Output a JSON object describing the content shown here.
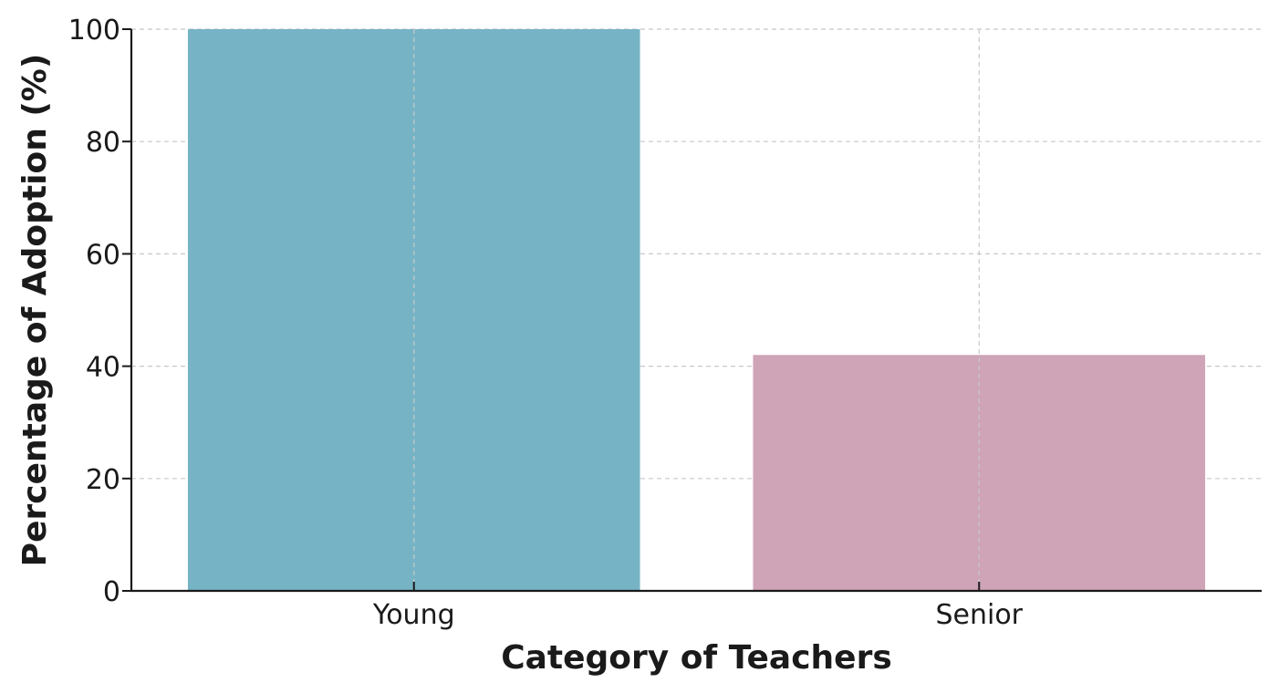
{
  "chart_data": {
    "type": "bar",
    "title": "",
    "xlabel": "Category of Teachers",
    "ylabel": "Percentage of Adoption (%)",
    "categories": [
      "Young",
      "Senior"
    ],
    "values": [
      100,
      42
    ],
    "colors": [
      "#76b4c5",
      "#cfa4b7"
    ],
    "ylim": [
      0,
      100
    ],
    "yticks": [
      0,
      20,
      40,
      60,
      80,
      100
    ],
    "grid": true,
    "legend": "none"
  }
}
